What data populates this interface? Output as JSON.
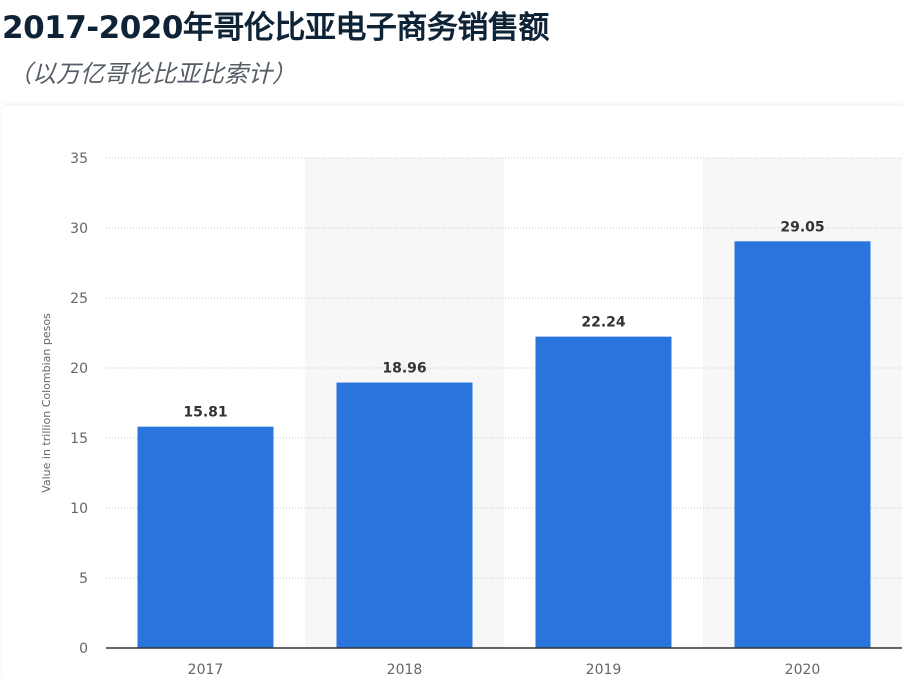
{
  "title": "2017-2020年哥伦比亚电子商务销售额",
  "subtitle": "（以万亿哥伦比亚比索计）",
  "colors": {
    "bar": "#2a74de",
    "band": "#f7f7f7",
    "grid": "#c8c8c8",
    "axis": "#333333",
    "tick_text": "#666666",
    "label_text": "#333333"
  },
  "chart_data": {
    "type": "bar",
    "categories": [
      "2017",
      "2018",
      "2019",
      "2020"
    ],
    "values": [
      15.81,
      18.96,
      22.24,
      29.05
    ],
    "value_labels": [
      "15.81",
      "18.96",
      "22.24",
      "29.05"
    ],
    "ylabel": "Value in trillion Colombian pesos",
    "xlabel": "",
    "ylim": [
      0,
      35
    ],
    "yticks": [
      0,
      5,
      10,
      15,
      20,
      25,
      30,
      35
    ],
    "grid": true,
    "alternating_bands": true
  }
}
